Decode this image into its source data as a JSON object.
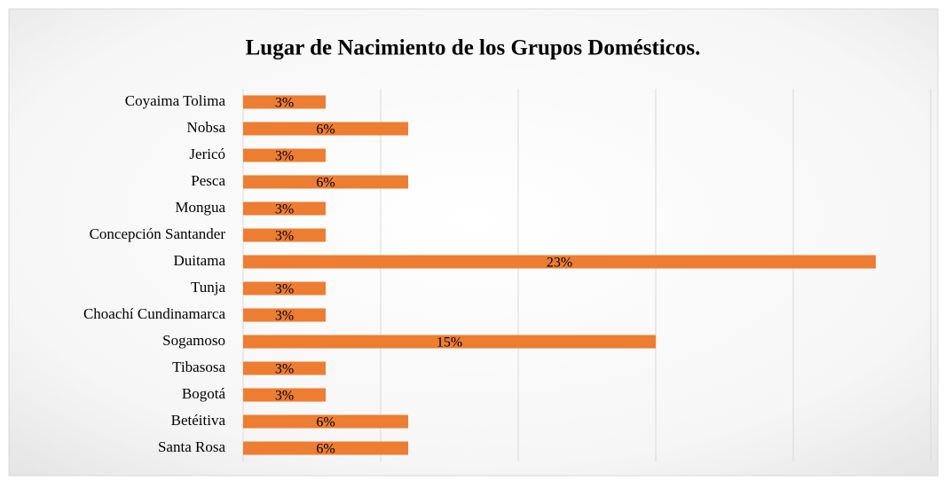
{
  "chart_data": {
    "type": "bar",
    "orientation": "horizontal",
    "title": "Lugar de Nacimiento de los Grupos Domésticos.",
    "categories": [
      "Coyaima Tolima",
      "Nobsa",
      "Jericó",
      "Pesca",
      "Mongua",
      "Concepción Santander",
      "Duitama",
      "Tunja",
      "Choachí Cundinamarca",
      "Sogamoso",
      "Tibasosa",
      "Bogotá",
      "Betéitiva",
      "Santa Rosa"
    ],
    "values": [
      3,
      6,
      3,
      6,
      3,
      3,
      23,
      3,
      3,
      15,
      3,
      3,
      6,
      6
    ],
    "value_labels": [
      "3%",
      "6%",
      "3%",
      "6%",
      "3%",
      "3%",
      "23%",
      "3%",
      "3%",
      "15%",
      "3%",
      "3%",
      "6%",
      "6%"
    ],
    "color": "#ed7d31",
    "xlim": [
      0,
      25
    ],
    "xticks": [
      0,
      5,
      10,
      15,
      20,
      25
    ],
    "grid": true
  }
}
